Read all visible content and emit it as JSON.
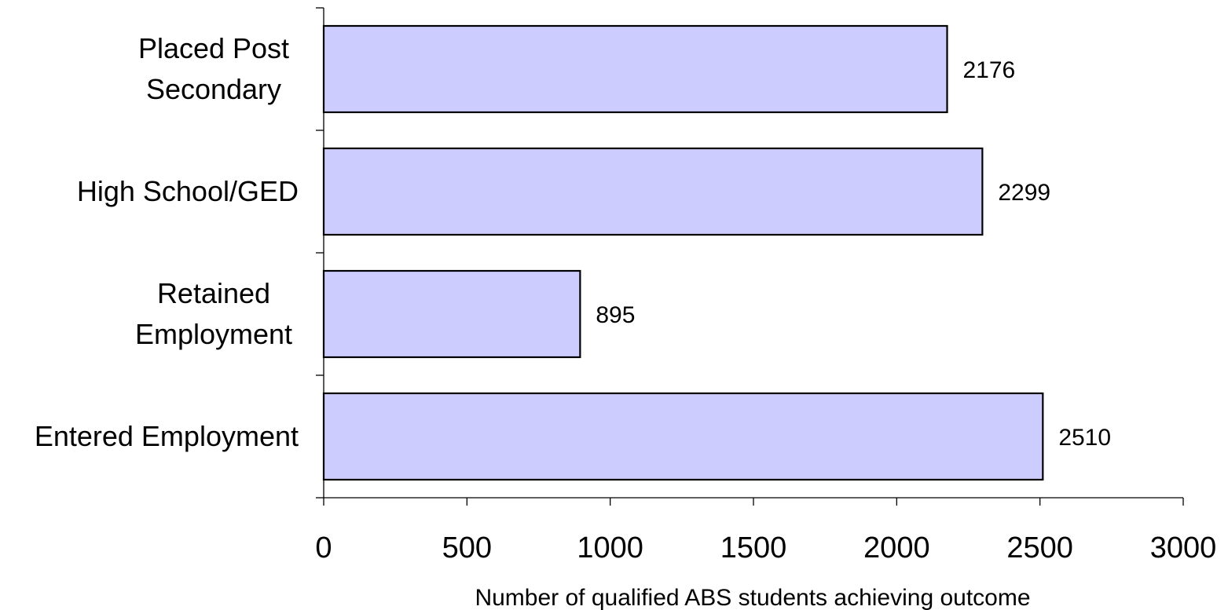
{
  "chart_data": {
    "type": "bar",
    "orientation": "horizontal",
    "categories": [
      "Placed Post Secondary",
      "High School/GED",
      "Retained Employment",
      "Entered Employment"
    ],
    "category_label_lines": [
      [
        "Placed Post",
        "Secondary"
      ],
      [
        "High School/GED"
      ],
      [
        "Retained",
        "Employment"
      ],
      [
        "Entered Employment"
      ]
    ],
    "values": [
      2176,
      2299,
      895,
      2510
    ],
    "value_labels": [
      "2176",
      "2299",
      "895",
      "2510"
    ],
    "xlabel": "Number of qualified ABS students achieving outcome",
    "ylabel": "",
    "title": "",
    "xlim": [
      0,
      3000
    ],
    "xticks": [
      0,
      500,
      1000,
      1500,
      2000,
      2500,
      3000
    ],
    "xtick_labels": [
      "0",
      "500",
      "1000",
      "1500",
      "2000",
      "2500",
      "3000"
    ],
    "grid": false,
    "legend": "none",
    "colors": {
      "bar_fill": "#ccccff",
      "bar_stroke": "#000000"
    }
  }
}
